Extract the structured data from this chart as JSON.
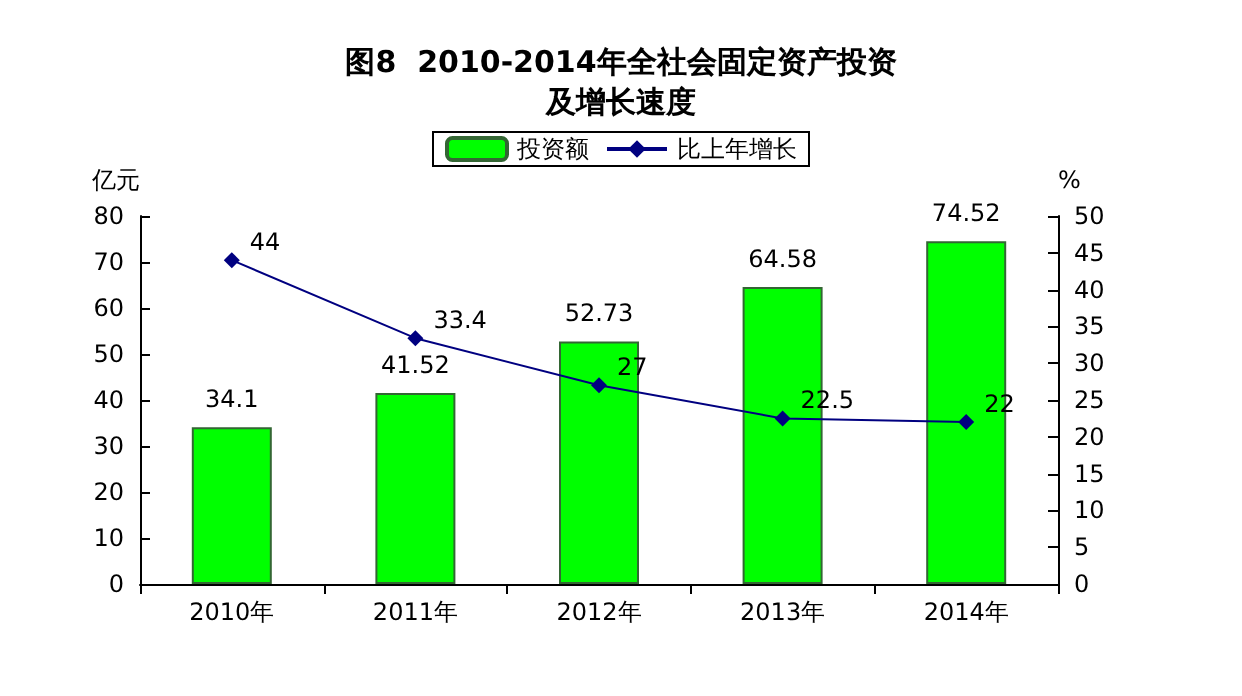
{
  "chart_data": {
    "type": "bar",
    "title": "图8  2010-2014年全社会固定资产投资及增长速度",
    "categories": [
      "2010年",
      "2011年",
      "2012年",
      "2013年",
      "2014年"
    ],
    "series": [
      {
        "name": "投资额",
        "color": "#00ff00",
        "values": [
          34.1,
          41.52,
          52.73,
          64.58,
          74.52
        ]
      },
      {
        "name": "比上年增长",
        "type": "line",
        "axis": "y2",
        "color": "#000080",
        "marker": "diamond",
        "values": [
          44,
          33.4,
          27,
          22.5,
          22
        ]
      }
    ],
    "ylabel": "亿元",
    "y2label": "%",
    "ylim": [
      0,
      80
    ],
    "yticks": [
      0,
      10,
      20,
      30,
      40,
      50,
      60,
      70,
      80
    ],
    "y2lim": [
      0,
      50
    ],
    "y2ticks": [
      0,
      5,
      10,
      15,
      20,
      25,
      30,
      35,
      40,
      45,
      50
    ],
    "data_labels": true,
    "legend": "top",
    "grid": false
  }
}
